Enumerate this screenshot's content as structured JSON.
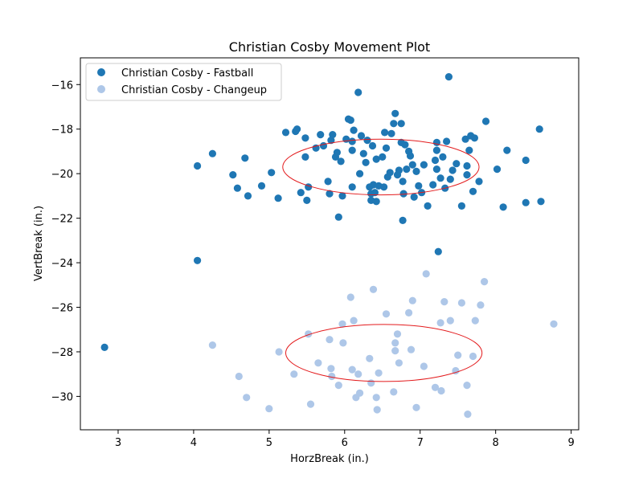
{
  "chart_data": {
    "type": "scatter",
    "title": "Christian Cosby Movement Plot",
    "xlabel": "HorzBreak (in.)",
    "ylabel": "VertBreak (in.)",
    "xlim": [
      2.5,
      9.1
    ],
    "ylim": [
      -31.5,
      -14.8
    ],
    "xticks": [
      3,
      4,
      5,
      6,
      7,
      8,
      9
    ],
    "yticks": [
      -30,
      -28,
      -26,
      -24,
      -22,
      -20,
      -18,
      -16
    ],
    "grid": false,
    "legend_position": "upper-left",
    "series": [
      {
        "name": "Christian Cosby - Fastball",
        "color": "#1f77b4",
        "points": [
          [
            2.82,
            -27.8
          ],
          [
            4.05,
            -19.65
          ],
          [
            4.05,
            -23.9
          ],
          [
            4.25,
            -19.1
          ],
          [
            4.52,
            -20.05
          ],
          [
            4.58,
            -20.65
          ],
          [
            4.68,
            -19.3
          ],
          [
            4.72,
            -21.0
          ],
          [
            4.9,
            -20.55
          ],
          [
            5.03,
            -19.95
          ],
          [
            5.12,
            -21.1
          ],
          [
            5.22,
            -18.15
          ],
          [
            5.35,
            -18.1
          ],
          [
            5.37,
            -18.0
          ],
          [
            5.42,
            -20.85
          ],
          [
            5.48,
            -19.25
          ],
          [
            5.48,
            -18.4
          ],
          [
            5.5,
            -21.2
          ],
          [
            5.52,
            -20.6
          ],
          [
            5.62,
            -18.85
          ],
          [
            5.68,
            -18.25
          ],
          [
            5.72,
            -18.75
          ],
          [
            5.78,
            -20.35
          ],
          [
            5.8,
            -20.9
          ],
          [
            5.82,
            -18.5
          ],
          [
            5.84,
            -18.25
          ],
          [
            5.88,
            -19.25
          ],
          [
            5.9,
            -19.05
          ],
          [
            5.92,
            -21.95
          ],
          [
            5.95,
            -19.45
          ],
          [
            5.97,
            -21.0
          ],
          [
            6.02,
            -18.45
          ],
          [
            6.05,
            -17.55
          ],
          [
            6.08,
            -17.6
          ],
          [
            6.1,
            -18.55
          ],
          [
            6.1,
            -18.95
          ],
          [
            6.1,
            -20.6
          ],
          [
            6.12,
            -18.05
          ],
          [
            6.18,
            -16.35
          ],
          [
            6.2,
            -20.0
          ],
          [
            6.22,
            -18.3
          ],
          [
            6.25,
            -19.1
          ],
          [
            6.28,
            -19.5
          ],
          [
            6.3,
            -18.5
          ],
          [
            6.33,
            -20.6
          ],
          [
            6.35,
            -20.9
          ],
          [
            6.35,
            -21.2
          ],
          [
            6.37,
            -18.75
          ],
          [
            6.38,
            -20.5
          ],
          [
            6.4,
            -20.85
          ],
          [
            6.42,
            -21.25
          ],
          [
            6.42,
            -19.35
          ],
          [
            6.45,
            -20.55
          ],
          [
            6.5,
            -19.25
          ],
          [
            6.52,
            -20.6
          ],
          [
            6.53,
            -18.15
          ],
          [
            6.55,
            -18.85
          ],
          [
            6.57,
            -20.15
          ],
          [
            6.6,
            -19.95
          ],
          [
            6.62,
            -18.2
          ],
          [
            6.65,
            -17.75
          ],
          [
            6.67,
            -17.3
          ],
          [
            6.7,
            -20.05
          ],
          [
            6.72,
            -19.85
          ],
          [
            6.75,
            -17.75
          ],
          [
            6.75,
            -18.6
          ],
          [
            6.77,
            -20.35
          ],
          [
            6.77,
            -22.1
          ],
          [
            6.78,
            -20.9
          ],
          [
            6.8,
            -18.7
          ],
          [
            6.82,
            -19.8
          ],
          [
            6.85,
            -19.0
          ],
          [
            6.87,
            -19.2
          ],
          [
            6.9,
            -19.6
          ],
          [
            6.92,
            -21.05
          ],
          [
            6.95,
            -19.9
          ],
          [
            6.98,
            -20.55
          ],
          [
            7.02,
            -20.85
          ],
          [
            7.05,
            -19.6
          ],
          [
            7.1,
            -21.45
          ],
          [
            7.17,
            -20.5
          ],
          [
            7.2,
            -19.4
          ],
          [
            7.22,
            -19.8
          ],
          [
            7.22,
            -18.6
          ],
          [
            7.22,
            -18.95
          ],
          [
            7.24,
            -23.5
          ],
          [
            7.27,
            -20.2
          ],
          [
            7.3,
            -19.25
          ],
          [
            7.33,
            -20.65
          ],
          [
            7.35,
            -18.55
          ],
          [
            7.38,
            -15.65
          ],
          [
            7.4,
            -20.25
          ],
          [
            7.43,
            -19.85
          ],
          [
            7.48,
            -19.55
          ],
          [
            7.55,
            -21.45
          ],
          [
            7.6,
            -18.45
          ],
          [
            7.62,
            -20.05
          ],
          [
            7.62,
            -19.65
          ],
          [
            7.65,
            -18.95
          ],
          [
            7.67,
            -18.3
          ],
          [
            7.7,
            -20.8
          ],
          [
            7.72,
            -18.4
          ],
          [
            7.78,
            -20.35
          ],
          [
            7.87,
            -17.65
          ],
          [
            8.02,
            -19.8
          ],
          [
            8.1,
            -21.5
          ],
          [
            8.15,
            -18.95
          ],
          [
            8.4,
            -19.4
          ],
          [
            8.4,
            -21.3
          ],
          [
            8.58,
            -18.0
          ],
          [
            8.6,
            -21.25
          ]
        ],
        "ellipse": {
          "center": [
            6.48,
            -19.7
          ],
          "semi_axes": [
            1.3,
            1.25
          ]
        }
      },
      {
        "name": "Christian Cosby - Changeup",
        "color": "#aec7e8",
        "points": [
          [
            4.25,
            -27.7
          ],
          [
            4.6,
            -29.1
          ],
          [
            4.7,
            -30.05
          ],
          [
            5.0,
            -30.55
          ],
          [
            5.13,
            -28.0
          ],
          [
            5.33,
            -29.0
          ],
          [
            5.52,
            -27.2
          ],
          [
            5.55,
            -30.35
          ],
          [
            5.65,
            -28.5
          ],
          [
            5.8,
            -27.45
          ],
          [
            5.82,
            -28.75
          ],
          [
            5.83,
            -29.1
          ],
          [
            5.92,
            -29.5
          ],
          [
            5.97,
            -26.75
          ],
          [
            5.98,
            -27.6
          ],
          [
            6.08,
            -25.55
          ],
          [
            6.1,
            -28.8
          ],
          [
            6.12,
            -26.6
          ],
          [
            6.15,
            -30.05
          ],
          [
            6.18,
            -29.0
          ],
          [
            6.2,
            -29.85
          ],
          [
            6.33,
            -28.3
          ],
          [
            6.35,
            -29.4
          ],
          [
            6.38,
            -25.2
          ],
          [
            6.42,
            -30.05
          ],
          [
            6.43,
            -30.6
          ],
          [
            6.45,
            -28.95
          ],
          [
            6.55,
            -26.3
          ],
          [
            6.65,
            -29.8
          ],
          [
            6.67,
            -27.6
          ],
          [
            6.67,
            -27.95
          ],
          [
            6.7,
            -27.2
          ],
          [
            6.72,
            -28.5
          ],
          [
            6.85,
            -26.25
          ],
          [
            6.88,
            -27.9
          ],
          [
            6.9,
            -25.7
          ],
          [
            6.95,
            -30.5
          ],
          [
            7.05,
            -28.65
          ],
          [
            7.08,
            -24.5
          ],
          [
            7.2,
            -29.6
          ],
          [
            7.27,
            -26.7
          ],
          [
            7.28,
            -29.75
          ],
          [
            7.32,
            -25.75
          ],
          [
            7.4,
            -26.6
          ],
          [
            7.47,
            -28.85
          ],
          [
            7.5,
            -28.15
          ],
          [
            7.55,
            -25.8
          ],
          [
            7.62,
            -29.5
          ],
          [
            7.63,
            -30.8
          ],
          [
            7.7,
            -28.2
          ],
          [
            7.73,
            -26.6
          ],
          [
            7.8,
            -25.9
          ],
          [
            7.85,
            -24.85
          ],
          [
            8.77,
            -26.75
          ]
        ],
        "ellipse": {
          "center": [
            6.52,
            -28.05
          ],
          "semi_axes": [
            1.3,
            1.28
          ]
        }
      }
    ]
  }
}
